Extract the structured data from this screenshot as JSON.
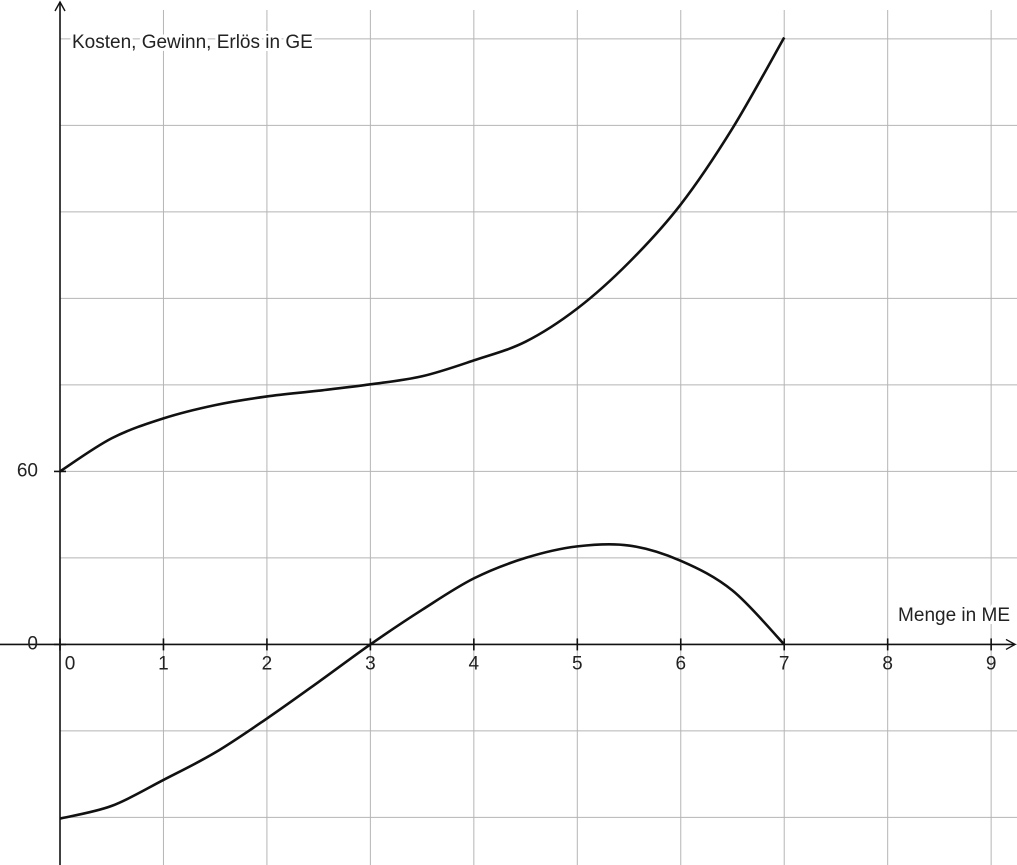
{
  "chart_data": {
    "type": "line",
    "ylabel": "Kosten, Gewinn, Erlös in GE",
    "xlabel": "Menge in ME",
    "x": [
      0,
      0.5,
      1,
      1.5,
      2,
      2.5,
      3,
      3.5,
      4,
      4.5,
      5,
      5.5,
      6,
      6.5,
      7
    ],
    "series": [
      {
        "color": "#111111",
        "values": [
          60,
          71.5,
          78.4,
          83,
          86,
          88,
          90.2,
          93,
          98.5,
          105,
          116.5,
          132.5,
          152.6,
          179,
          210.5
        ]
      },
      {
        "color": "#111111",
        "values": [
          -60.4,
          -56,
          -47,
          -37.5,
          -25.7,
          -13,
          0,
          12,
          22.9,
          30,
          34,
          34.3,
          29,
          18.7,
          0
        ]
      }
    ],
    "xlim": [
      -0.58,
      9.25
    ],
    "ylim": [
      -76.5,
      223.5
    ],
    "xticks": [
      0,
      1,
      2,
      3,
      4,
      5,
      6,
      7,
      8,
      9
    ],
    "yticks": [
      0,
      60
    ],
    "ygrid": [
      -60,
      -30,
      0,
      30,
      60,
      90,
      120,
      150,
      180,
      210
    ],
    "grid": true
  }
}
